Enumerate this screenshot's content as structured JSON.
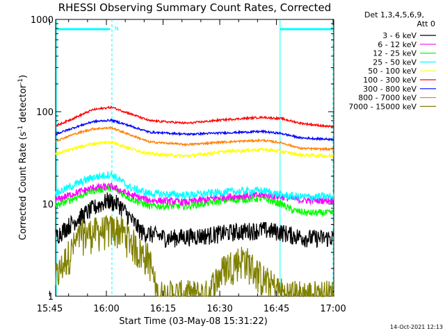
{
  "chart_data": {
    "type": "line",
    "title": "RHESSI Observing Summary Count Rates, Corrected",
    "xlabel": "Start Time (03-May-08 15:31:22)",
    "ylabel_main": "Corrected Count Rate (s",
    "ylabel_sup1": "-1",
    "ylabel_mid": " detector",
    "ylabel_sup2": "-1",
    "ylabel_end": ")",
    "y_scale": "log",
    "ylim": [
      1,
      1000
    ],
    "xlim_minutes": [
      15.2,
      88.8
    ],
    "x_ticks": [
      "15:45",
      "16:00",
      "16:15",
      "16:30",
      "16:45",
      "17:00"
    ],
    "y_ticks": [
      "1",
      "10",
      "100",
      "1000"
    ],
    "legend_header": [
      "Det 1,3,4,5,6,9,",
      "Att 0"
    ],
    "legend_position": "right",
    "footer": "14-Oct-2021 12:13",
    "night_flag_label": "N",
    "series": [
      {
        "name": "3 - 6 keV",
        "color": "#000000",
        "points": [
          [
            15.2,
            4.5
          ],
          [
            20,
            6.5
          ],
          [
            25,
            9
          ],
          [
            29,
            11
          ],
          [
            32,
            10
          ],
          [
            35,
            7
          ],
          [
            38,
            5
          ],
          [
            45,
            4.3
          ],
          [
            55,
            4.6
          ],
          [
            62,
            5
          ],
          [
            70,
            5.3
          ],
          [
            75,
            5
          ],
          [
            78,
            4.6
          ],
          [
            82,
            4.3
          ],
          [
            88.8,
            4.3
          ]
        ]
      },
      {
        "name": "6 - 12 keV",
        "color": "#ff00ff",
        "points": [
          [
            15.2,
            11
          ],
          [
            20,
            13
          ],
          [
            25,
            15
          ],
          [
            30,
            15.5
          ],
          [
            35,
            12.5
          ],
          [
            40,
            11
          ],
          [
            50,
            10.5
          ],
          [
            60,
            12
          ],
          [
            70,
            12.5
          ],
          [
            75,
            12
          ],
          [
            80,
            11
          ],
          [
            88.8,
            11
          ]
        ]
      },
      {
        "name": "12 - 25 keV",
        "color": "#00ff00",
        "points": [
          [
            15.2,
            9.5
          ],
          [
            20,
            11.5
          ],
          [
            25,
            14
          ],
          [
            30,
            15
          ],
          [
            35,
            11.5
          ],
          [
            40,
            9.5
          ],
          [
            50,
            9.5
          ],
          [
            60,
            11
          ],
          [
            70,
            11.5
          ],
          [
            75,
            10
          ],
          [
            78,
            8.5
          ],
          [
            82,
            8
          ],
          [
            88.8,
            8
          ]
        ]
      },
      {
        "name": "25 - 50 keV",
        "color": "#00ffff",
        "points": [
          [
            15.2,
            13
          ],
          [
            20,
            16
          ],
          [
            25,
            19.5
          ],
          [
            30,
            21
          ],
          [
            35,
            15
          ],
          [
            40,
            13
          ],
          [
            50,
            12.5
          ],
          [
            60,
            13.5
          ],
          [
            70,
            14
          ],
          [
            75,
            12.5
          ],
          [
            80,
            12
          ],
          [
            88.8,
            12
          ]
        ]
      },
      {
        "name": "50 - 100 keV",
        "color": "#ffff00",
        "points": [
          [
            15.2,
            35
          ],
          [
            20,
            40
          ],
          [
            25,
            45
          ],
          [
            30,
            47
          ],
          [
            35,
            40
          ],
          [
            40,
            35
          ],
          [
            50,
            33
          ],
          [
            60,
            37
          ],
          [
            70,
            39
          ],
          [
            75,
            37
          ],
          [
            80,
            34
          ],
          [
            88.8,
            33
          ]
        ]
      },
      {
        "name": "100 - 300 keV",
        "color": "#ff0000",
        "points": [
          [
            15.2,
            70
          ],
          [
            20,
            85
          ],
          [
            25,
            105
          ],
          [
            30,
            112
          ],
          [
            35,
            95
          ],
          [
            40,
            80
          ],
          [
            50,
            75
          ],
          [
            60,
            82
          ],
          [
            70,
            87
          ],
          [
            75,
            84
          ],
          [
            80,
            75
          ],
          [
            88.8,
            68
          ]
        ]
      },
      {
        "name": "300 - 800 keV",
        "color": "#0000ff",
        "points": [
          [
            15.2,
            57
          ],
          [
            20,
            67
          ],
          [
            25,
            78
          ],
          [
            30,
            81
          ],
          [
            35,
            70
          ],
          [
            40,
            60
          ],
          [
            50,
            57
          ],
          [
            60,
            59
          ],
          [
            70,
            61
          ],
          [
            75,
            58
          ],
          [
            80,
            52
          ],
          [
            88.8,
            50
          ]
        ]
      },
      {
        "name": "800 - 7000 keV",
        "color": "#ff8000",
        "points": [
          [
            15.2,
            48
          ],
          [
            20,
            57
          ],
          [
            25,
            65
          ],
          [
            30,
            67
          ],
          [
            35,
            56
          ],
          [
            40,
            47
          ],
          [
            50,
            44
          ],
          [
            60,
            47
          ],
          [
            70,
            49
          ],
          [
            75,
            46
          ],
          [
            80,
            40
          ],
          [
            88.8,
            39
          ]
        ]
      },
      {
        "name": "7000 - 15000 keV",
        "color": "#808000",
        "points": [
          [
            15.2,
            1.5
          ],
          [
            18,
            2.5
          ],
          [
            22,
            4.5
          ],
          [
            28,
            5
          ],
          [
            32,
            5.2
          ],
          [
            35,
            4
          ],
          [
            37,
            3
          ],
          [
            40,
            2.5
          ],
          [
            42,
            1
          ],
          [
            55,
            1
          ],
          [
            60,
            2
          ],
          [
            65,
            2.5
          ],
          [
            70,
            1.5
          ],
          [
            76,
            1
          ],
          [
            84,
            1
          ],
          [
            88.8,
            1
          ]
        ]
      }
    ]
  }
}
